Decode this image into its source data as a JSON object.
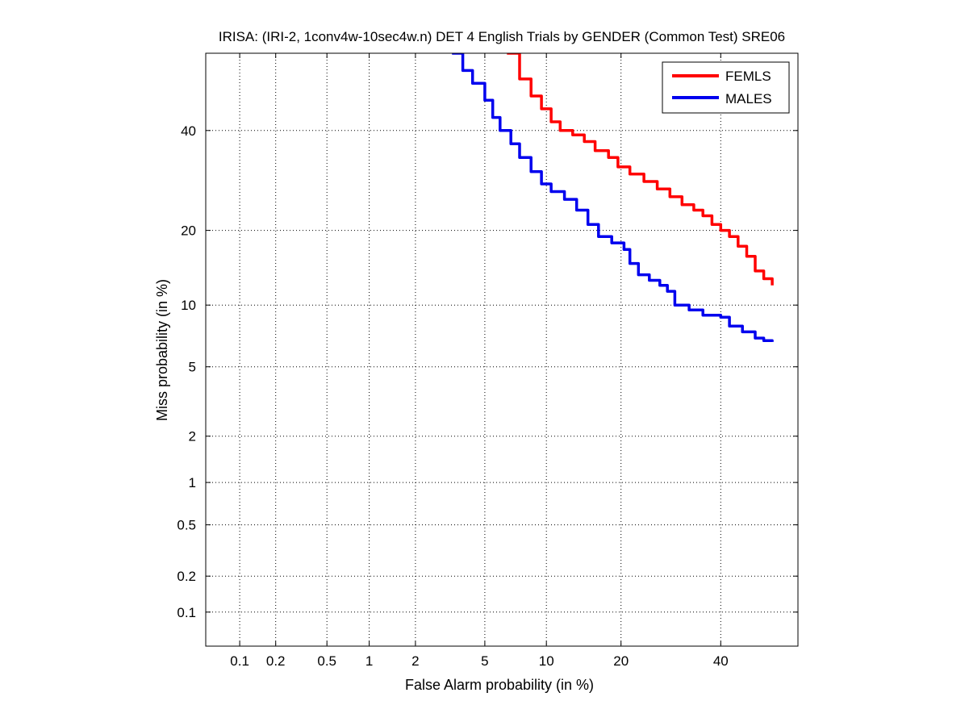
{
  "chart_data": {
    "type": "line",
    "title": "IRISA: (IRI-2, 1conv4w-10sec4w.n) DET 4 English Trials by GENDER (Common Test) SRE06",
    "xlabel": "False Alarm probability (in %)",
    "ylabel": "Miss probability (in %)",
    "scale": "normal-deviate (probit) on both axes",
    "xlim": [
      0.05,
      58
    ],
    "ylim": [
      0.05,
      58
    ],
    "x_ticks": [
      0.1,
      0.2,
      0.5,
      1,
      2,
      5,
      10,
      20,
      40
    ],
    "x_tick_labels": [
      "0.1",
      "0.2",
      "0.5",
      "1",
      "2",
      "5",
      "10",
      "20",
      "40"
    ],
    "y_ticks": [
      0.1,
      0.2,
      0.5,
      1,
      2,
      5,
      10,
      20,
      40
    ],
    "y_tick_labels": [
      "0.1",
      "0.2",
      "0.5",
      "1",
      "2",
      "5",
      "10",
      "20",
      "40"
    ],
    "grid": true,
    "legend_position": "top-right",
    "series": [
      {
        "name": "FEMLS",
        "color": "#ff0000",
        "points": [
          [
            6.5,
            58
          ],
          [
            7.5,
            52
          ],
          [
            8.5,
            48
          ],
          [
            9.5,
            45
          ],
          [
            10.5,
            42
          ],
          [
            11.5,
            40
          ],
          [
            13,
            39
          ],
          [
            14.5,
            37.5
          ],
          [
            16,
            35.5
          ],
          [
            18,
            34
          ],
          [
            19.5,
            32
          ],
          [
            21.5,
            30.5
          ],
          [
            24,
            29
          ],
          [
            26.5,
            27.5
          ],
          [
            29,
            26
          ],
          [
            31.5,
            24.5
          ],
          [
            34,
            23.5
          ],
          [
            36,
            22.5
          ],
          [
            38,
            21
          ],
          [
            40,
            20
          ],
          [
            42,
            19
          ],
          [
            44,
            17.5
          ],
          [
            46,
            16
          ],
          [
            48,
            14
          ],
          [
            50,
            13
          ],
          [
            52,
            12.2
          ]
        ]
      },
      {
        "name": "MALES",
        "color": "#0000ee",
        "points": [
          [
            3.3,
            58
          ],
          [
            3.8,
            54
          ],
          [
            4.3,
            51
          ],
          [
            5,
            47
          ],
          [
            5.5,
            43
          ],
          [
            6,
            40
          ],
          [
            6.8,
            37
          ],
          [
            7.5,
            34
          ],
          [
            8.5,
            31
          ],
          [
            9.5,
            28.5
          ],
          [
            10.5,
            27
          ],
          [
            12,
            25.5
          ],
          [
            13.5,
            23.5
          ],
          [
            15,
            21
          ],
          [
            16.5,
            19
          ],
          [
            18.5,
            18
          ],
          [
            20.5,
            17
          ],
          [
            21.5,
            15
          ],
          [
            23,
            13.5
          ],
          [
            25,
            12.8
          ],
          [
            27,
            12.2
          ],
          [
            28.5,
            11.5
          ],
          [
            30,
            10
          ],
          [
            33,
            9.5
          ],
          [
            36,
            9.0
          ],
          [
            40,
            8.8
          ],
          [
            42,
            8.0
          ],
          [
            45,
            7.5
          ],
          [
            48,
            7.0
          ],
          [
            50,
            6.8
          ],
          [
            52,
            6.7
          ]
        ]
      }
    ]
  }
}
